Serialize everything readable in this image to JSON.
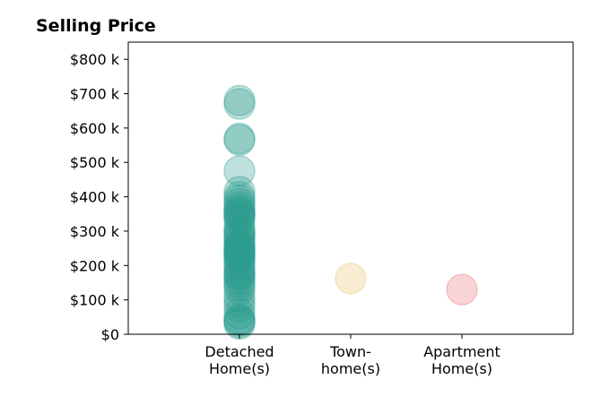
{
  "chart_data": {
    "type": "scatter",
    "title": "Selling Price",
    "xlabel": "",
    "ylabel": "",
    "categories": [
      [
        "Detached",
        "Home(s)"
      ],
      [
        "Town-",
        "home(s)"
      ],
      [
        "Apartment",
        "Home(s)"
      ]
    ],
    "ylim": [
      0,
      850000
    ],
    "yticks": [
      0,
      100000,
      200000,
      300000,
      400000,
      500000,
      600000,
      700000,
      800000
    ],
    "ytick_labels": [
      "$0",
      "$100 k",
      "$200 k",
      "$300 k",
      "$400 k",
      "$500 k",
      "$600 k",
      "$700 k",
      "$800 k"
    ],
    "grid": false,
    "series": [
      {
        "category_index": 0,
        "color": "#2a9d8f",
        "values": [
          680000,
          670000,
          570000,
          565000,
          475000,
          415000,
          400000,
          390000,
          380000,
          370000,
          360000,
          355000,
          350000,
          345000,
          340000,
          330000,
          310000,
          300000,
          295000,
          285000,
          280000,
          270000,
          260000,
          255000,
          250000,
          245000,
          240000,
          235000,
          230000,
          225000,
          220000,
          210000,
          200000,
          190000,
          180000,
          175000,
          170000,
          160000,
          150000,
          140000,
          130000,
          110000,
          95000,
          80000,
          60000,
          45000,
          40000,
          35000,
          30000
        ]
      },
      {
        "category_index": 1,
        "color": "#e9c46a",
        "values": [
          162000
        ]
      },
      {
        "category_index": 2,
        "color": "#e76f7a",
        "values": [
          130000
        ]
      }
    ]
  }
}
